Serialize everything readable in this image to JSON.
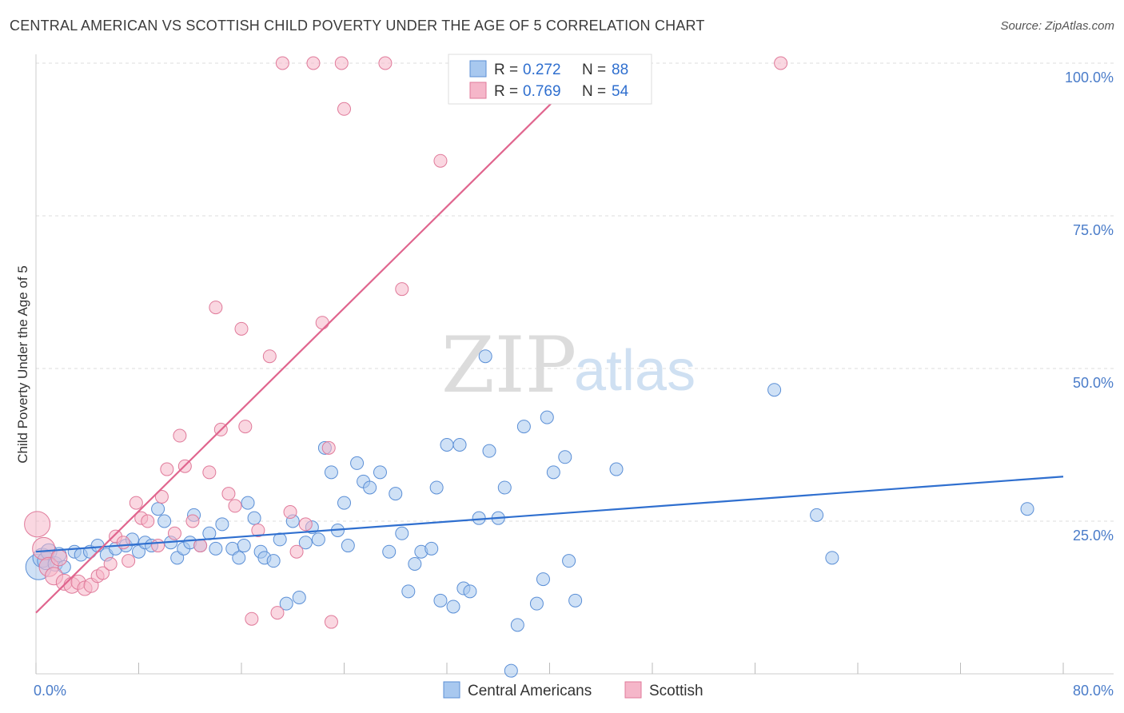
{
  "title": "CENTRAL AMERICAN VS SCOTTISH CHILD POVERTY UNDER THE AGE OF 5 CORRELATION CHART",
  "source": "Source: ZipAtlas.com",
  "watermark": {
    "zip": "ZIP",
    "atlas": "atlas"
  },
  "legend": {
    "r_label": "R =",
    "n_label": "N =",
    "entries": [
      {
        "r": "0.272",
        "n": "88"
      },
      {
        "r": "0.769",
        "n": "54"
      }
    ]
  },
  "colors": {
    "blue_fill": "#a8c8ef",
    "blue_stroke": "#5b8fd6",
    "blue_line": "#2f6fcf",
    "pink_fill": "#f5b6c9",
    "pink_stroke": "#e07a9a",
    "pink_line": "#e0658e",
    "grid": "#dddddd",
    "tick_text": "#4a7cc9"
  },
  "chart_data": {
    "type": "scatter",
    "title": "CENTRAL AMERICAN VS SCOTTISH CHILD POVERTY UNDER THE AGE OF 5 CORRELATION CHART",
    "xlabel": "",
    "ylabel": "Child Poverty Under the Age of 5",
    "xlim": [
      0,
      80
    ],
    "ylim": [
      0,
      100
    ],
    "x_tick_labels": [
      "0.0%",
      "80.0%"
    ],
    "y_ticks": [
      25,
      50,
      75,
      100
    ],
    "y_tick_labels": [
      "25.0%",
      "50.0%",
      "75.0%",
      "100.0%"
    ],
    "grid": true,
    "legend_position": "top-center",
    "series": [
      {
        "name": "Central Americans",
        "r": 0.272,
        "n": 88,
        "trend": [
          [
            0,
            20.0
          ],
          [
            80,
            32.3
          ]
        ],
        "points": [
          [
            0.2,
            17.5,
            14
          ],
          [
            0.5,
            19.0,
            10
          ],
          [
            0.8,
            18.5,
            9
          ],
          [
            1.0,
            20.0,
            8
          ],
          [
            1.5,
            18.0,
            7
          ],
          [
            1.8,
            19.5,
            7
          ],
          [
            2.2,
            17.5,
            6
          ],
          [
            3.0,
            20.0,
            6
          ],
          [
            3.5,
            19.5,
            6
          ],
          [
            4.2,
            20.0,
            6
          ],
          [
            4.8,
            21.0,
            6
          ],
          [
            5.5,
            19.5,
            6
          ],
          [
            6.2,
            20.5,
            6
          ],
          [
            7.0,
            21.0,
            6
          ],
          [
            7.5,
            22.0,
            6
          ],
          [
            8.0,
            20.0,
            6
          ],
          [
            8.5,
            21.5,
            6
          ],
          [
            9.0,
            21.0,
            6
          ],
          [
            9.5,
            27.0,
            6
          ],
          [
            10.0,
            25.0,
            6
          ],
          [
            10.5,
            21.5,
            6
          ],
          [
            11.0,
            19.0,
            6
          ],
          [
            11.5,
            20.5,
            6
          ],
          [
            12.0,
            21.5,
            6
          ],
          [
            12.3,
            26.0,
            6
          ],
          [
            12.8,
            21.0,
            6
          ],
          [
            13.5,
            23.0,
            6
          ],
          [
            14.0,
            20.5,
            6
          ],
          [
            14.5,
            24.5,
            6
          ],
          [
            15.3,
            20.5,
            6
          ],
          [
            15.8,
            19.0,
            6
          ],
          [
            16.2,
            21.0,
            6
          ],
          [
            16.5,
            28.0,
            6
          ],
          [
            17.0,
            25.5,
            6
          ],
          [
            17.5,
            20.0,
            6
          ],
          [
            17.8,
            19.0,
            6
          ],
          [
            18.5,
            18.5,
            6
          ],
          [
            19.0,
            22.0,
            6
          ],
          [
            19.5,
            11.5,
            6
          ],
          [
            20.0,
            25.0,
            6
          ],
          [
            20.5,
            12.5,
            6
          ],
          [
            21.0,
            21.5,
            6
          ],
          [
            21.5,
            24.0,
            6
          ],
          [
            22.0,
            22.0,
            6
          ],
          [
            22.5,
            37.0,
            6
          ],
          [
            23.0,
            33.0,
            6
          ],
          [
            23.5,
            23.5,
            6
          ],
          [
            24.0,
            28.0,
            6
          ],
          [
            24.3,
            21.0,
            6
          ],
          [
            25.0,
            34.5,
            6
          ],
          [
            25.5,
            31.5,
            6
          ],
          [
            26.0,
            30.5,
            6
          ],
          [
            26.8,
            33.0,
            6
          ],
          [
            27.5,
            20.0,
            6
          ],
          [
            28.0,
            29.5,
            6
          ],
          [
            28.5,
            23.0,
            6
          ],
          [
            29.0,
            13.5,
            6
          ],
          [
            29.5,
            18.0,
            6
          ],
          [
            30.0,
            20.0,
            6
          ],
          [
            30.8,
            20.5,
            6
          ],
          [
            31.2,
            30.5,
            6
          ],
          [
            31.5,
            12.0,
            6
          ],
          [
            32.0,
            37.5,
            6
          ],
          [
            32.5,
            11.0,
            6
          ],
          [
            33.0,
            37.5,
            6
          ],
          [
            33.3,
            14.0,
            6
          ],
          [
            33.8,
            13.5,
            6
          ],
          [
            34.5,
            25.5,
            6
          ],
          [
            35.0,
            52.0,
            6
          ],
          [
            35.3,
            36.5,
            6
          ],
          [
            36.0,
            25.5,
            6
          ],
          [
            36.5,
            30.5,
            6
          ],
          [
            37.5,
            8.0,
            6
          ],
          [
            37.0,
            0.5,
            6
          ],
          [
            38.0,
            40.5,
            6
          ],
          [
            39.0,
            11.5,
            6
          ],
          [
            39.5,
            15.5,
            6
          ],
          [
            39.8,
            42.0,
            6
          ],
          [
            40.3,
            33.0,
            6
          ],
          [
            41.2,
            35.5,
            6
          ],
          [
            41.5,
            18.5,
            6
          ],
          [
            42.0,
            12.0,
            6
          ],
          [
            45.2,
            33.5,
            6
          ],
          [
            57.5,
            46.5,
            6
          ],
          [
            60.8,
            26.0,
            6
          ],
          [
            62.0,
            19.0,
            6
          ],
          [
            77.2,
            27.0,
            6
          ],
          [
            48.0,
            30.0,
            0
          ]
        ]
      },
      {
        "name": "Scottish",
        "r": 0.769,
        "n": 54,
        "trend": [
          [
            0,
            10.0
          ],
          [
            43.3,
            100.0
          ]
        ],
        "points": [
          [
            0.1,
            24.5,
            14
          ],
          [
            0.6,
            20.5,
            12
          ],
          [
            1.0,
            17.5,
            10
          ],
          [
            1.4,
            16.0,
            9
          ],
          [
            1.8,
            19.0,
            8
          ],
          [
            2.2,
            15.0,
            8
          ],
          [
            2.8,
            14.5,
            8
          ],
          [
            3.3,
            15.0,
            7
          ],
          [
            3.8,
            14.0,
            7
          ],
          [
            4.3,
            14.5,
            7
          ],
          [
            4.8,
            16.0,
            6
          ],
          [
            5.2,
            16.5,
            6
          ],
          [
            5.8,
            18.0,
            6
          ],
          [
            6.2,
            22.5,
            6
          ],
          [
            6.8,
            21.5,
            6
          ],
          [
            7.2,
            18.5,
            6
          ],
          [
            7.8,
            28.0,
            6
          ],
          [
            8.2,
            25.5,
            6
          ],
          [
            8.7,
            25.0,
            6
          ],
          [
            9.5,
            21.0,
            6
          ],
          [
            9.8,
            29.0,
            6
          ],
          [
            10.2,
            33.5,
            6
          ],
          [
            10.8,
            23.0,
            6
          ],
          [
            11.2,
            39.0,
            6
          ],
          [
            11.6,
            34.0,
            6
          ],
          [
            12.2,
            25.0,
            6
          ],
          [
            12.8,
            21.0,
            6
          ],
          [
            13.5,
            33.0,
            6
          ],
          [
            14.0,
            60.0,
            6
          ],
          [
            14.4,
            40.0,
            6
          ],
          [
            15.0,
            29.5,
            6
          ],
          [
            15.5,
            27.5,
            6
          ],
          [
            16.0,
            56.5,
            6
          ],
          [
            16.3,
            40.5,
            6
          ],
          [
            16.8,
            9.0,
            6
          ],
          [
            17.3,
            23.5,
            6
          ],
          [
            18.2,
            52.0,
            6
          ],
          [
            18.8,
            10.0,
            6
          ],
          [
            19.2,
            100.0,
            6
          ],
          [
            19.8,
            26.5,
            6
          ],
          [
            20.3,
            20.0,
            6
          ],
          [
            21.0,
            24.5,
            6
          ],
          [
            21.6,
            100.0,
            6
          ],
          [
            22.3,
            57.5,
            6
          ],
          [
            22.8,
            37.0,
            6
          ],
          [
            23.0,
            8.5,
            6
          ],
          [
            23.8,
            100.0,
            6
          ],
          [
            24.0,
            92.5,
            6
          ],
          [
            27.2,
            100.0,
            6
          ],
          [
            28.5,
            63.0,
            6
          ],
          [
            31.5,
            84.0,
            6
          ],
          [
            45.0,
            100.0,
            6
          ],
          [
            58.0,
            100.0,
            6
          ],
          [
            17.0,
            20.5,
            0
          ]
        ]
      }
    ]
  },
  "bottom_legend": [
    "Central Americans",
    "Scottish"
  ]
}
